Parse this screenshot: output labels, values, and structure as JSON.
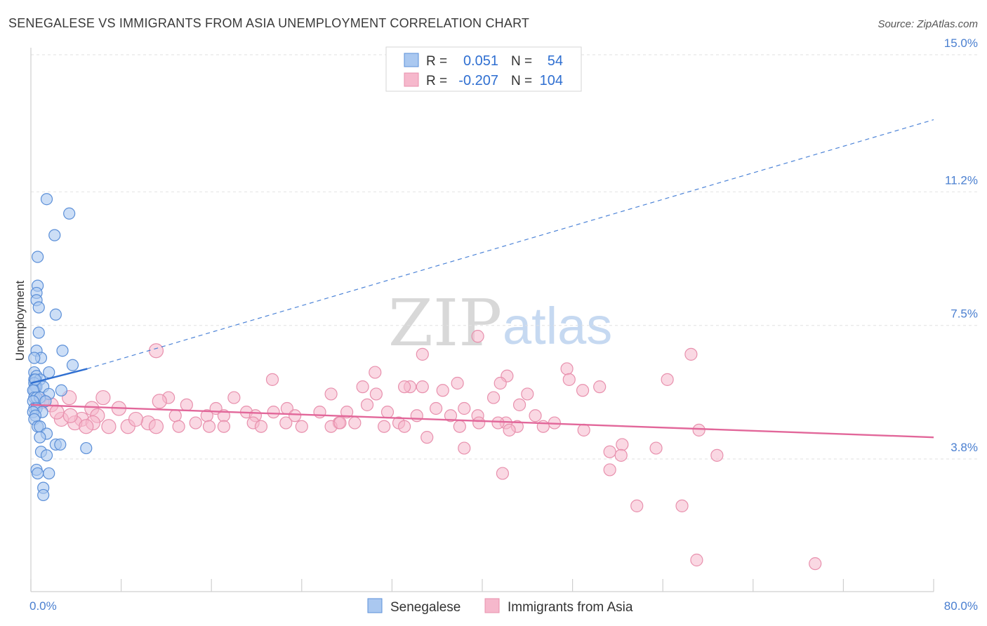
{
  "title": "SENEGALESE VS IMMIGRANTS FROM ASIA UNEMPLOYMENT CORRELATION CHART",
  "source": "Source: ZipAtlas.com",
  "watermark": {
    "zip": "ZIP",
    "atlas": "atlas"
  },
  "legend": {
    "series": [
      {
        "r_label": "R =",
        "r_value": "0.051",
        "n_label": "N =",
        "n_value": "54"
      },
      {
        "r_label": "R =",
        "r_value": "-0.207",
        "n_label": "N =",
        "n_value": "104"
      }
    ]
  },
  "chart_data": {
    "type": "scatter",
    "title": "SENEGALESE VS IMMIGRANTS FROM ASIA UNEMPLOYMENT CORRELATION CHART",
    "xlabel": "",
    "ylabel": "Unemployment",
    "xlim": [
      0,
      80
    ],
    "ylim": [
      0,
      15.8
    ],
    "x_tick_labels": [
      {
        "value": 0,
        "label": "0.0%"
      },
      {
        "value": 80,
        "label": "80.0%"
      }
    ],
    "x_minor_ticks": [
      0,
      8,
      16,
      24,
      32,
      40,
      48,
      56,
      64,
      72,
      80
    ],
    "y_ticks": [
      {
        "value": 3.8,
        "label": "3.8%"
      },
      {
        "value": 7.5,
        "label": "7.5%"
      },
      {
        "value": 11.2,
        "label": "11.2%"
      },
      {
        "value": 15.0,
        "label": "15.0%"
      }
    ],
    "grid": true,
    "legend_position": "top-center",
    "colors": {
      "senegalese_fill": "#aac8f0",
      "senegalese_stroke": "#5b8fd8",
      "senegalese_line": "#2f6fd1",
      "asia_fill": "#f6b8cc",
      "asia_stroke": "#e890ad",
      "asia_line": "#e2679a",
      "tick": "#4a7fd0"
    },
    "series": [
      {
        "name": "Senegalese",
        "r": 0.051,
        "n": 54,
        "trend_solid": [
          [
            0,
            5.9
          ],
          [
            5,
            6.3
          ]
        ],
        "trend_dashed": [
          [
            5,
            6.3
          ],
          [
            80,
            13.2
          ]
        ],
        "points": [
          [
            1.4,
            11.0
          ],
          [
            3.4,
            10.6
          ],
          [
            2.1,
            10.0
          ],
          [
            0.6,
            9.4
          ],
          [
            0.6,
            8.6
          ],
          [
            0.5,
            8.4
          ],
          [
            0.5,
            8.2
          ],
          [
            0.7,
            8.0
          ],
          [
            2.2,
            7.8
          ],
          [
            0.7,
            7.3
          ],
          [
            0.5,
            6.8
          ],
          [
            2.8,
            6.8
          ],
          [
            0.9,
            6.6
          ],
          [
            0.3,
            6.6
          ],
          [
            3.7,
            6.4
          ],
          [
            0.3,
            6.2
          ],
          [
            1.6,
            6.2
          ],
          [
            0.5,
            6.1
          ],
          [
            0.3,
            6.0
          ],
          [
            0.8,
            6.0
          ],
          [
            0.3,
            5.9
          ],
          [
            0.5,
            5.8
          ],
          [
            0.4,
            5.8
          ],
          [
            0.3,
            5.7
          ],
          [
            1.1,
            5.8
          ],
          [
            0.2,
            5.7
          ],
          [
            2.7,
            5.7
          ],
          [
            1.6,
            5.6
          ],
          [
            0.3,
            5.5
          ],
          [
            0.5,
            5.5
          ],
          [
            0.8,
            5.5
          ],
          [
            0.2,
            5.4
          ],
          [
            1.3,
            5.4
          ],
          [
            0.3,
            5.2
          ],
          [
            0.5,
            5.2
          ],
          [
            1.0,
            5.1
          ],
          [
            0.2,
            5.1
          ],
          [
            0.4,
            5.0
          ],
          [
            0.3,
            4.9
          ],
          [
            0.6,
            4.7
          ],
          [
            0.8,
            4.7
          ],
          [
            1.4,
            4.5
          ],
          [
            0.8,
            4.4
          ],
          [
            2.2,
            4.2
          ],
          [
            2.6,
            4.2
          ],
          [
            4.9,
            4.1
          ],
          [
            0.9,
            4.0
          ],
          [
            1.4,
            3.9
          ],
          [
            0.5,
            3.5
          ],
          [
            0.6,
            3.4
          ],
          [
            1.6,
            3.4
          ],
          [
            1.1,
            3.0
          ],
          [
            1.1,
            2.8
          ],
          [
            0.4,
            6.0
          ]
        ]
      },
      {
        "name": "Immigrants from Asia",
        "r": -0.207,
        "n": 104,
        "trend": [
          [
            0,
            5.3
          ],
          [
            80,
            4.4
          ]
        ],
        "points": [
          [
            11.1,
            6.8
          ],
          [
            39.6,
            7.2
          ],
          [
            34.7,
            6.7
          ],
          [
            58.5,
            6.7
          ],
          [
            47.5,
            6.3
          ],
          [
            30.5,
            6.2
          ],
          [
            42.2,
            6.1
          ],
          [
            47.7,
            6.0
          ],
          [
            56.4,
            6.0
          ],
          [
            21.4,
            6.0
          ],
          [
            37.8,
            5.9
          ],
          [
            33.6,
            5.8
          ],
          [
            41.6,
            5.9
          ],
          [
            33.1,
            5.8
          ],
          [
            34.7,
            5.8
          ],
          [
            50.4,
            5.8
          ],
          [
            48.9,
            5.7
          ],
          [
            36.5,
            5.7
          ],
          [
            29.4,
            5.8
          ],
          [
            30.6,
            5.6
          ],
          [
            26.6,
            5.6
          ],
          [
            44.0,
            5.6
          ],
          [
            18.0,
            5.5
          ],
          [
            41.0,
            5.5
          ],
          [
            3.4,
            5.5
          ],
          [
            12.2,
            5.5
          ],
          [
            43.3,
            5.3
          ],
          [
            11.4,
            5.4
          ],
          [
            13.8,
            5.3
          ],
          [
            29.8,
            5.3
          ],
          [
            35.9,
            5.2
          ],
          [
            38.4,
            5.2
          ],
          [
            1.8,
            5.3
          ],
          [
            5.4,
            5.2
          ],
          [
            7.8,
            5.2
          ],
          [
            16.4,
            5.2
          ],
          [
            19.1,
            5.1
          ],
          [
            21.5,
            5.1
          ],
          [
            22.7,
            5.2
          ],
          [
            23.4,
            5.0
          ],
          [
            25.6,
            5.1
          ],
          [
            28.0,
            5.1
          ],
          [
            31.6,
            5.1
          ],
          [
            34.2,
            5.0
          ],
          [
            37.2,
            5.0
          ],
          [
            39.6,
            5.0
          ],
          [
            44.7,
            5.0
          ],
          [
            5.9,
            5.0
          ],
          [
            12.8,
            5.0
          ],
          [
            15.6,
            5.0
          ],
          [
            17.1,
            5.0
          ],
          [
            19.9,
            5.0
          ],
          [
            2.7,
            4.9
          ],
          [
            4.5,
            4.9
          ],
          [
            5.5,
            4.8
          ],
          [
            3.9,
            4.8
          ],
          [
            10.4,
            4.8
          ],
          [
            14.6,
            4.8
          ],
          [
            19.7,
            4.8
          ],
          [
            22.6,
            4.8
          ],
          [
            27.3,
            4.8
          ],
          [
            28.7,
            4.8
          ],
          [
            32.6,
            4.8
          ],
          [
            39.7,
            4.8
          ],
          [
            42.1,
            4.8
          ],
          [
            4.9,
            4.7
          ],
          [
            6.9,
            4.7
          ],
          [
            8.6,
            4.7
          ],
          [
            11.1,
            4.7
          ],
          [
            13.1,
            4.7
          ],
          [
            15.8,
            4.7
          ],
          [
            17.1,
            4.7
          ],
          [
            20.4,
            4.7
          ],
          [
            24.0,
            4.7
          ],
          [
            26.6,
            4.7
          ],
          [
            27.4,
            4.8
          ],
          [
            31.3,
            4.7
          ],
          [
            33.1,
            4.7
          ],
          [
            38.0,
            4.7
          ],
          [
            41.4,
            4.8
          ],
          [
            43.1,
            4.7
          ],
          [
            45.4,
            4.7
          ],
          [
            46.4,
            4.8
          ],
          [
            35.1,
            4.4
          ],
          [
            42.4,
            4.6
          ],
          [
            49.0,
            4.6
          ],
          [
            59.2,
            4.6
          ],
          [
            38.4,
            4.1
          ],
          [
            51.3,
            4.0
          ],
          [
            52.4,
            4.2
          ],
          [
            60.8,
            3.9
          ],
          [
            55.4,
            4.1
          ],
          [
            51.3,
            3.5
          ],
          [
            41.8,
            3.4
          ],
          [
            53.7,
            2.5
          ],
          [
            57.7,
            2.5
          ],
          [
            52.3,
            3.9
          ],
          [
            59.0,
            1.0
          ],
          [
            69.5,
            0.9
          ],
          [
            6.4,
            5.5
          ],
          [
            2.3,
            5.1
          ],
          [
            3.5,
            5.0
          ],
          [
            1.0,
            5.4
          ],
          [
            9.3,
            4.9
          ]
        ]
      }
    ]
  },
  "bottom_legend": [
    {
      "label": "Senegalese"
    },
    {
      "label": "Immigrants from Asia"
    }
  ]
}
